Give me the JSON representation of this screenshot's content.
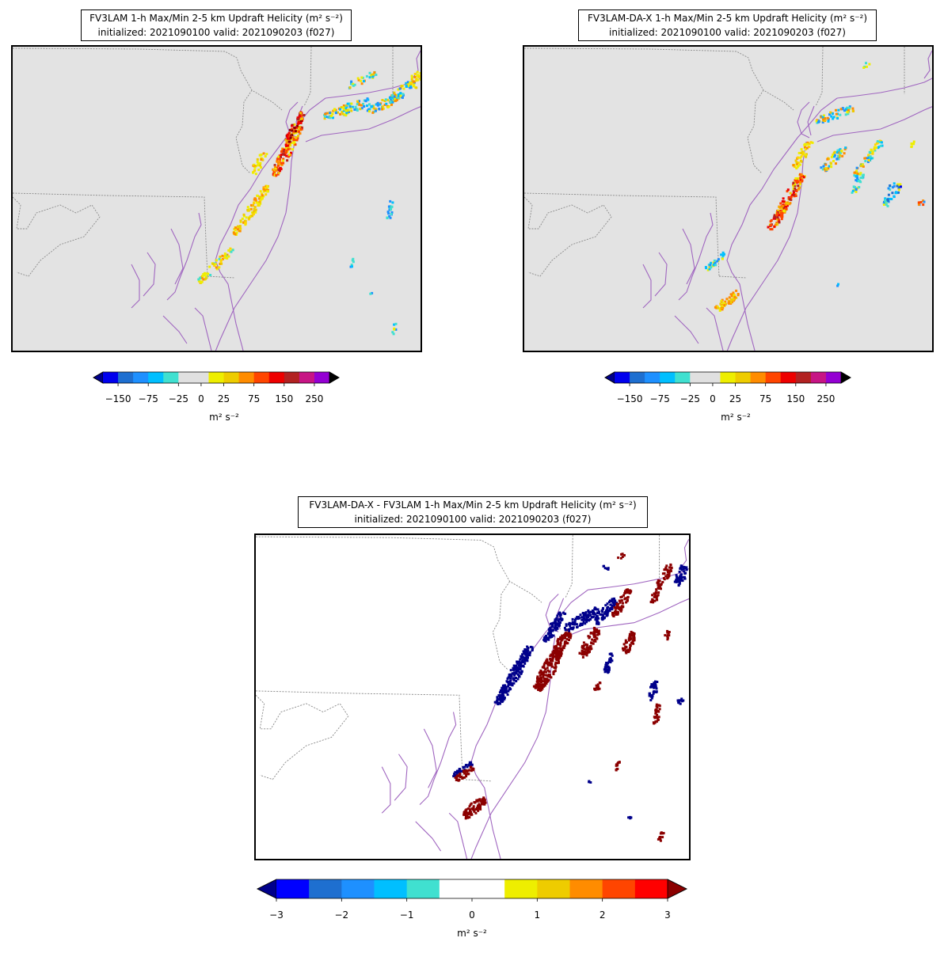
{
  "panel_a": {
    "title_line1": "FV3LAM 1-h Max/Min 2-5 km Updraft Helicity (m² s⁻²)",
    "title_line2": "initialized: 2021090100 valid: 2021090203 (f027)",
    "colorbar": {
      "ticks": [
        "−150",
        "−75",
        "−25",
        "0",
        "25",
        "75",
        "150",
        "250"
      ],
      "unit": "m² s⁻²",
      "colors": [
        "#0000ee",
        "#1e6fd0",
        "#1e90ff",
        "#00bfff",
        "#40e0d0",
        "#e0e0e0",
        "#e0e0e0",
        "#eeee00",
        "#eecc00",
        "#ff8c00",
        "#ff4500",
        "#ee0000",
        "#b22222",
        "#c71585",
        "#9400d3"
      ],
      "under_color": "#00008b",
      "over_color": "#000000"
    }
  },
  "panel_b": {
    "title_line1": "FV3LAM-DA-X 1-h Max/Min 2-5 km Updraft Helicity (m² s⁻²)",
    "title_line2": "initialized: 2021090100 valid: 2021090203 (f027)",
    "colorbar": {
      "ticks": [
        "−150",
        "−75",
        "−25",
        "0",
        "25",
        "75",
        "150",
        "250"
      ],
      "unit": "m² s⁻²"
    }
  },
  "panel_c": {
    "title_line1": "FV3LAM-DA-X - FV3LAM 1-h Max/Min 2-5 km Updraft Helicity (m² s⁻²)",
    "title_line2": "initialized: 2021090100 valid: 2021090203 (f027)",
    "colorbar": {
      "ticks": [
        "−3",
        "−2",
        "−1",
        "0",
        "1",
        "2",
        "3"
      ],
      "unit": "m² s⁻²",
      "colors": [
        "#0000ff",
        "#1e6fd0",
        "#1e90ff",
        "#00bfff",
        "#40e0d0",
        "#ffffff",
        "#ffffff",
        "#eeee00",
        "#eecc00",
        "#ff8c00",
        "#ff4500",
        "#ff0000"
      ],
      "under_color": "#00008b",
      "over_color": "#8b0000"
    }
  },
  "colors": {
    "land": "#e3e3e3",
    "coast": "#a066c0",
    "state_border": "#8a8a8a",
    "diff_positive": "#8b0000",
    "diff_negative": "#00008b"
  }
}
